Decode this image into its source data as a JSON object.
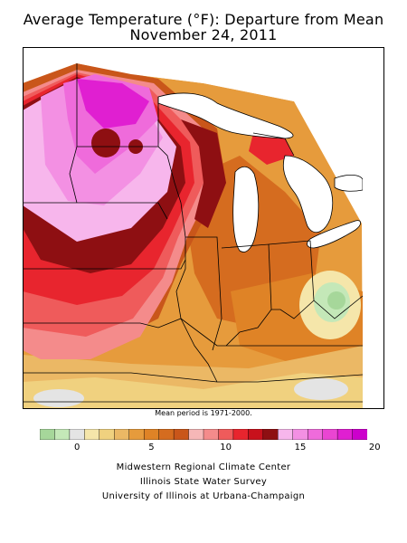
{
  "header": {
    "title_line1": "Average Temperature (°F): Departure from Mean",
    "title_line2": "November 24, 2011"
  },
  "map": {
    "region": "Midwest United States",
    "note": "Mean period is 1971-2000."
  },
  "legend": {
    "colors": [
      "#a6d79a",
      "#c4e8b8",
      "#e4e4e4",
      "#f5e6aa",
      "#f0d17f",
      "#ebb865",
      "#e69b3c",
      "#df8326",
      "#d56c1f",
      "#c9561a",
      "#f6b7b7",
      "#f48b8b",
      "#ef5b5b",
      "#e8252e",
      "#c8111c",
      "#8e0f12",
      "#f7b6ec",
      "#f390e3",
      "#ef6bdb",
      "#ea45d2",
      "#e01fd1",
      "#cc00cc"
    ],
    "ticks": [
      {
        "label": "0",
        "value": 0
      },
      {
        "label": "5",
        "value": 5
      },
      {
        "label": "10",
        "value": 10
      },
      {
        "label": "15",
        "value": 15
      },
      {
        "label": "20",
        "value": 20
      }
    ]
  },
  "footer": {
    "line1": "Midwestern Regional Climate Center",
    "line2": "Illinois State Water Survey",
    "line3": "University of Illinois at Urbana-Champaign"
  }
}
